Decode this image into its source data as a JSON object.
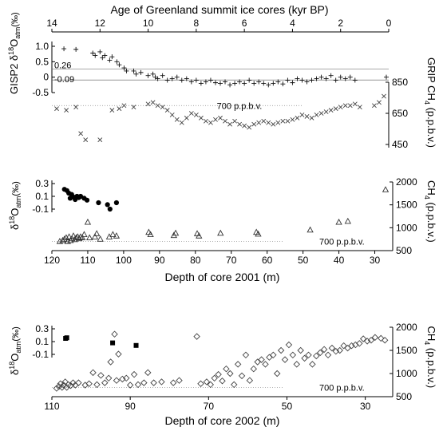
{
  "chart_data": [
    {
      "type": "scatter",
      "panel": "a",
      "title": "Age of Greenland summit ice cores (kyr BP)",
      "top_axis": {
        "range": [
          14,
          0
        ],
        "ticks": [
          "14",
          "12",
          "10",
          "8",
          "6",
          "4",
          "2",
          "0"
        ]
      },
      "left_axis": {
        "label": "GISP2 δ¹⁸Oₐₜₘ (‰)",
        "label_parts": [
          "GISP2",
          "δ",
          "18",
          "O",
          "atm",
          "(‰)"
        ],
        "range": [
          -0.5,
          1.0
        ],
        "ticks": [
          "1.0",
          "0.5",
          "0",
          "-0.5"
        ]
      },
      "right_axis": {
        "label": "GRIP CH₄ (p.p.b.v.)",
        "label_parts": [
          "GRIP CH",
          "4",
          " (p.p.b.v.)"
        ],
        "range": [
          450,
          850
        ],
        "ticks": [
          "850",
          "650",
          "450"
        ]
      },
      "reference_lines": [
        {
          "value": 0.26,
          "label": "0.26"
        },
        {
          "value": -0.09,
          "label": "-0.09"
        }
      ],
      "annotation": "700 p.p.b.v.",
      "series": [
        {
          "marker": "plus",
          "x": [
            13.5,
            13.0,
            12.3,
            12.2,
            12.0,
            11.9,
            11.8,
            11.6,
            11.5,
            11.3,
            11.2,
            11.0,
            10.9,
            10.6,
            10.5,
            10.3,
            10.0,
            9.8,
            9.7,
            9.6,
            9.4,
            9.2,
            9.0,
            8.8,
            8.6,
            8.4,
            8.2,
            8.0,
            7.8,
            7.6,
            7.4,
            7.2,
            7.0,
            6.8,
            6.6,
            6.4,
            6.2,
            6.0,
            5.8,
            5.6,
            5.4,
            5.2,
            5.0,
            4.8,
            4.6,
            4.4,
            4.2,
            4.0,
            3.8,
            3.6,
            3.4,
            3.2,
            3.0,
            2.8,
            2.6,
            2.4,
            2.2,
            2.0,
            1.8,
            1.6,
            1.4,
            0.1
          ],
          "y": [
            0.92,
            0.9,
            0.78,
            0.7,
            0.82,
            0.63,
            0.7,
            0.55,
            0.66,
            0.5,
            0.4,
            0.3,
            0.2,
            0.2,
            0.1,
            0.15,
            0.05,
            0.1,
            0.0,
            -0.05,
            0.05,
            -0.1,
            -0.05,
            0.0,
            -0.1,
            -0.05,
            -0.15,
            -0.1,
            -0.2,
            -0.15,
            -0.1,
            -0.18,
            -0.2,
            -0.15,
            -0.25,
            -0.2,
            -0.15,
            -0.2,
            -0.1,
            -0.2,
            -0.15,
            -0.2,
            -0.25,
            -0.2,
            -0.15,
            -0.22,
            -0.1,
            -0.18,
            -0.05,
            -0.1,
            -0.15,
            -0.1,
            -0.05,
            0.0,
            -0.05,
            0.05,
            -0.1,
            0.0,
            -0.05,
            0.0,
            -0.1,
            0.0
          ]
        },
        {
          "marker": "x",
          "x": [
            13.8,
            13.4,
            13.0,
            12.8,
            12.6,
            12.0,
            11.5,
            11.2,
            11.0,
            10.6,
            10.0,
            9.8,
            9.6,
            9.4,
            9.2,
            9.0,
            8.8,
            8.6,
            8.4,
            8.2,
            8.0,
            7.8,
            7.6,
            7.4,
            7.2,
            7.0,
            6.8,
            6.6,
            6.4,
            6.2,
            6.0,
            5.8,
            5.6,
            5.4,
            5.2,
            5.0,
            4.8,
            4.6,
            4.4,
            4.2,
            4.0,
            3.8,
            3.6,
            3.4,
            3.2,
            3.0,
            2.8,
            2.6,
            2.4,
            2.2,
            2.0,
            1.8,
            1.6,
            1.4,
            1.2,
            0.6,
            0.4,
            0.2
          ],
          "y": [
            680,
            670,
            690,
            520,
            480,
            480,
            670,
            680,
            700,
            690,
            710,
            720,
            700,
            690,
            670,
            640,
            610,
            590,
            620,
            650,
            640,
            620,
            600,
            590,
            610,
            620,
            600,
            580,
            600,
            580,
            570,
            560,
            580,
            590,
            600,
            590,
            580,
            590,
            600,
            600,
            610,
            620,
            640,
            630,
            620,
            640,
            650,
            660,
            670,
            680,
            690,
            700,
            700,
            710,
            690,
            700,
            720,
            760
          ]
        }
      ]
    },
    {
      "type": "scatter",
      "panel": "b",
      "xlabel": "Depth of core 2001 (m)",
      "x_axis": {
        "range": [
          120,
          25
        ],
        "ticks": [
          "120",
          "110",
          "100",
          "90",
          "80",
          "70",
          "60",
          "50",
          "40",
          "30"
        ]
      },
      "left_axis": {
        "label": "δ¹⁸Oₐₜₘ (‰)",
        "label_parts": [
          "δ",
          "18",
          "O",
          "atm",
          "(‰)"
        ],
        "range": [
          -0.15,
          0.3
        ],
        "ticks": [
          "0.3",
          "0.1",
          "-0.1"
        ]
      },
      "right_axis": {
        "label": "CH₄ (p.p.b.v.)",
        "label_parts": [
          "CH",
          "4",
          " (p.p.b.v.)"
        ],
        "range": [
          500,
          2000
        ],
        "ticks": [
          "2000",
          "1500",
          "1000",
          "500"
        ]
      },
      "annotation": "700 p.p.b.v.",
      "series": [
        {
          "marker": "filled-circle",
          "x": [
            116.5,
            115.8,
            115.3,
            114.9,
            114.5,
            114.0,
            113.5,
            113.0,
            112.5,
            112.0,
            111.0,
            110.2,
            107.0,
            104.5,
            103.8,
            102.0
          ],
          "y": [
            0.21,
            0.19,
            0.15,
            0.07,
            0.13,
            0.09,
            0.05,
            0.1,
            0.08,
            0.1,
            0.07,
            0.04,
            0.0,
            -0.03,
            -0.1,
            0.0
          ]
        },
        {
          "marker": "open-triangle",
          "x": [
            117.8,
            117.0,
            116.5,
            116.0,
            115.6,
            115.2,
            114.8,
            114.4,
            114.0,
            113.6,
            113.2,
            112.8,
            112.4,
            112.0,
            111.5,
            111.0,
            110.0,
            109.5,
            108.0,
            107.5,
            106.5,
            104.0,
            103.0,
            102.0,
            93.0,
            92.5,
            86.0,
            85.5,
            79.5,
            79.0,
            73.0,
            63.0,
            62.5,
            48.0,
            40.0,
            37.5,
            27.0
          ],
          "y": [
            700,
            720,
            750,
            780,
            700,
            800,
            720,
            760,
            820,
            740,
            780,
            800,
            760,
            800,
            780,
            850,
            1120,
            780,
            800,
            870,
            750,
            800,
            850,
            820,
            900,
            850,
            830,
            880,
            870,
            820,
            880,
            900,
            860,
            950,
            1120,
            1140,
            1830
          ]
        }
      ]
    },
    {
      "type": "scatter",
      "panel": "c",
      "xlabel": "Depth of core 2002 (m)",
      "x_axis": {
        "range": [
          110,
          23
        ],
        "ticks": [
          "110",
          "90",
          "70",
          "50",
          "30"
        ]
      },
      "left_axis": {
        "label": "δ¹⁸Oₐₜₘ (‰)",
        "label_parts": [
          "δ",
          "18",
          "O",
          "atm",
          "(‰)"
        ],
        "range": [
          -0.15,
          0.3
        ],
        "ticks": [
          "0.3",
          "0.1",
          "-0.1"
        ]
      },
      "right_axis": {
        "label": "CH₄ (p.p.b.v.)",
        "label_parts": [
          "CH",
          "4",
          " (p.p.b.v.)"
        ],
        "range": [
          500,
          2000
        ],
        "ticks": [
          "2000",
          "1500",
          "1000",
          "500"
        ]
      },
      "annotation": "700 p.p.b.v.",
      "series": [
        {
          "marker": "filled-square",
          "x": [
            106.5,
            106.2,
            94.5,
            88.5
          ],
          "y": [
            0.15,
            0.16,
            0.08,
            0.04
          ]
        },
        {
          "marker": "open-diamond",
          "x": [
            108.8,
            108.2,
            107.8,
            107.4,
            107.0,
            106.6,
            106.2,
            105.8,
            105.2,
            104.6,
            104.0,
            103.2,
            101.5,
            100.5,
            99.5,
            98.5,
            97.5,
            96.5,
            95.5,
            95.0,
            94.0,
            93.5,
            93.0,
            92.0,
            91.0,
            90.0,
            89.0,
            88.0,
            86.5,
            85.5,
            84.0,
            82.0,
            79.0,
            77.5,
            73.0,
            72.0,
            70.5,
            69.5,
            68.5,
            67.5,
            66.5,
            65.5,
            64.5,
            63.5,
            62.5,
            61.5,
            60.5,
            59.5,
            58.5,
            57.5,
            56.5,
            55.5,
            54.5,
            53.5,
            52.5,
            51.5,
            50.5,
            49.5,
            48.5,
            47.5,
            46.5,
            45.5,
            44.5,
            43.5,
            42.5,
            41.5,
            40.5,
            39.5,
            38.5,
            37.5,
            36.5,
            35.5,
            34.5,
            33.5,
            32.5,
            31.5,
            30.5,
            29.5,
            28.5,
            27.5,
            26.0,
            25.0
          ],
          "y": [
            680,
            720,
            780,
            700,
            750,
            820,
            700,
            760,
            740,
            800,
            750,
            800,
            750,
            780,
            1020,
            760,
            960,
            800,
            900,
            1250,
            1850,
            850,
            1420,
            880,
            900,
            750,
            980,
            760,
            800,
            1020,
            800,
            820,
            800,
            850,
            1800,
            780,
            820,
            760,
            900,
            980,
            840,
            1100,
            1000,
            760,
            1200,
            950,
            1400,
            850,
            1100,
            1250,
            1300,
            1200,
            1350,
            1400,
            1000,
            1500,
            1300,
            1620,
            1400,
            1200,
            1500,
            1330,
            1400,
            1200,
            1380,
            1450,
            1520,
            1400,
            1550,
            1480,
            1500,
            1600,
            1550,
            1600,
            1620,
            1650,
            1750,
            1700,
            1720,
            1780,
            1760,
            1720
          ]
        }
      ]
    }
  ]
}
